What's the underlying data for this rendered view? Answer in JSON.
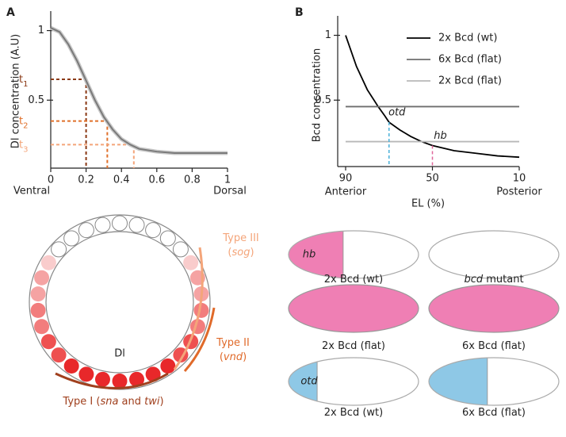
{
  "panel_labels": [
    "A",
    "B"
  ],
  "chart_data": [
    {
      "type": "line",
      "y_label": "Dl concentration (A.U)",
      "xlim": [
        0,
        1
      ],
      "xticks": [
        0,
        0.2,
        0.4,
        0.6,
        0.8,
        1
      ],
      "ylim": [
        0,
        1.14
      ],
      "yticks": [
        0.5,
        1
      ],
      "x_end_labels": [
        "Ventral",
        "Dorsal"
      ],
      "x": [
        0,
        0.05,
        0.1,
        0.15,
        0.2,
        0.25,
        0.3,
        0.35,
        0.4,
        0.45,
        0.5,
        0.6,
        0.7,
        0.8,
        0.9,
        1
      ],
      "series": [
        {
          "color": "#7a7a7a",
          "values": [
            1.02,
            0.99,
            0.9,
            0.78,
            0.64,
            0.5,
            0.38,
            0.29,
            0.22,
            0.18,
            0.15,
            0.13,
            0.12,
            0.12,
            0.12,
            0.12
          ]
        }
      ],
      "thresholds": [
        {
          "label": "t",
          "sub": "1",
          "x": 0.2,
          "y": 0.65,
          "color": "#8b3a16"
        },
        {
          "label": "t",
          "sub": "2",
          "x": 0.32,
          "y": 0.35,
          "color": "#e0702a"
        },
        {
          "label": "t",
          "sub": "3",
          "x": 0.47,
          "y": 0.18,
          "color": "#f4a57a"
        }
      ]
    },
    {
      "type": "line",
      "y_label": "Bcd concentration",
      "x_label": "EL (%)",
      "xlim": [
        90,
        10
      ],
      "xticks": [
        90,
        50,
        10
      ],
      "ylim": [
        0,
        1.15
      ],
      "yticks": [
        0.5,
        1
      ],
      "x_end_labels": [
        "Anterior",
        "Posterior"
      ],
      "x": [
        90,
        85,
        80,
        75,
        72,
        70,
        65,
        60,
        55,
        50,
        40,
        30,
        20,
        10
      ],
      "series": [
        {
          "name": "2x Bcd (wt)",
          "color": "#000000",
          "values": [
            1,
            0.76,
            0.58,
            0.45,
            0.38,
            0.33,
            0.27,
            0.22,
            0.18,
            0.15,
            0.11,
            0.09,
            0.07,
            0.06
          ]
        },
        {
          "name": "6x Bcd (flat)",
          "color": "#6e6e6e",
          "values": [
            0.45,
            0.45,
            0.45,
            0.45,
            0.45,
            0.45,
            0.45,
            0.45,
            0.45,
            0.45,
            0.45,
            0.45,
            0.45,
            0.45
          ]
        },
        {
          "name": "2x Bcd (flat)",
          "color": "#b8b8b8",
          "values": [
            0.18,
            0.18,
            0.18,
            0.18,
            0.18,
            0.18,
            0.18,
            0.18,
            0.18,
            0.18,
            0.18,
            0.18,
            0.18,
            0.18
          ]
        }
      ],
      "annotations": [
        {
          "text": "otd",
          "x": 70,
          "color": "#4ab0d9"
        },
        {
          "text": "hb",
          "x": 50,
          "color": "#e0679a"
        }
      ]
    }
  ],
  "cell_diagram": {
    "center_label": "Dl",
    "types": [
      {
        "color": "#f4a57a",
        "lines": [
          [
            {
              "text": "Type III"
            }
          ],
          [
            {
              "text": "("
            },
            {
              "text": "sog",
              "italic": true
            },
            {
              "text": ")"
            }
          ]
        ]
      },
      {
        "color": "#e06a2a",
        "lines": [
          [
            {
              "text": "Type II"
            }
          ],
          [
            {
              "text": "("
            },
            {
              "text": "vnd",
              "italic": true
            },
            {
              "text": ")"
            }
          ]
        ]
      },
      {
        "color": "#a0401e",
        "lines": [
          [
            {
              "text": "Type I ("
            },
            {
              "text": "sna",
              "italic": true
            },
            {
              "text": " and "
            },
            {
              "text": "twi",
              "italic": true
            },
            {
              "text": ")"
            }
          ]
        ]
      }
    ]
  },
  "embryos": [
    {
      "inner": "hb",
      "color": "#ef7fb4",
      "caption": [
        {
          "text": "2x Bcd (wt)"
        }
      ]
    },
    {
      "caption": [
        {
          "text": "bcd",
          "italic": true
        },
        {
          "text": " mutant"
        }
      ]
    },
    {
      "color": "#ef7fb4",
      "caption": [
        {
          "text": "2x Bcd (flat)"
        }
      ]
    },
    {
      "color": "#ef7fb4",
      "caption": [
        {
          "text": "6x Bcd (flat)"
        }
      ]
    },
    {
      "inner": "otd",
      "color": "#8ec8e6",
      "caption": [
        {
          "text": "2x Bcd (wt)"
        }
      ]
    },
    {
      "color": "#8ec8e6",
      "caption": [
        {
          "text": "6x Bcd (flat)"
        }
      ]
    }
  ]
}
